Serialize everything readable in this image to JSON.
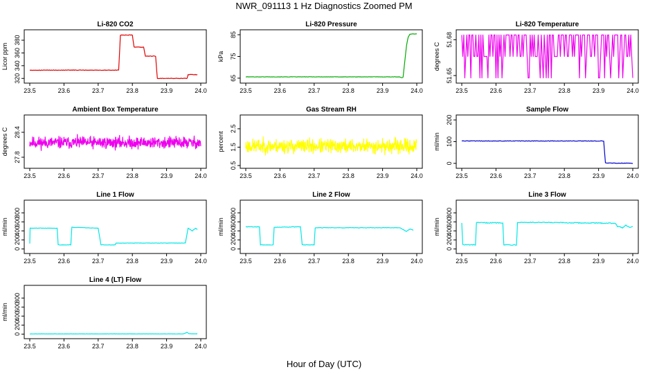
{
  "figure": {
    "title": "NWR_091113  1 Hz Diagnostics Zoomed PM",
    "xlabel": "Hour of Day (UTC)"
  },
  "chart_data": [
    {
      "type": "line",
      "title": "Li-820 CO2",
      "ylabel": "Licor ppm",
      "color": "#e00000",
      "xlim": [
        23.5,
        24.0
      ],
      "xticks": [
        "23.5",
        "23.6",
        "23.7",
        "23.8",
        "23.9",
        "24.0"
      ],
      "ylim": [
        317,
        392
      ],
      "yticks": [
        "320",
        "340",
        "360",
        "380"
      ],
      "noise": 0.4,
      "series": [
        {
          "points": [
            [
              23.5,
              333
            ],
            [
              23.7,
              333
            ],
            [
              23.76,
              333
            ],
            [
              23.765,
              388
            ],
            [
              23.8,
              388
            ],
            [
              23.805,
              369
            ],
            [
              23.833,
              369
            ],
            [
              23.838,
              355
            ],
            [
              23.868,
              355
            ],
            [
              23.873,
              320
            ],
            [
              23.96,
              320
            ],
            [
              23.963,
              326
            ],
            [
              23.99,
              326
            ]
          ]
        }
      ]
    },
    {
      "type": "line",
      "title": "Li-820 Pressure",
      "ylabel": "kPa",
      "color": "#00aa00",
      "xlim": [
        23.5,
        24.0
      ],
      "xticks": [
        "23.5",
        "23.6",
        "23.7",
        "23.8",
        "23.9",
        "24.0"
      ],
      "ylim": [
        64,
        86
      ],
      "yticks": [
        "65",
        "75",
        "85"
      ],
      "noise": 0.08,
      "series": [
        {
          "points": [
            [
              23.5,
              65.6
            ],
            [
              23.95,
              65.6
            ],
            [
              23.955,
              65.2
            ],
            [
              23.96,
              65.4
            ],
            [
              23.97,
              80
            ],
            [
              23.975,
              84
            ],
            [
              23.98,
              85.3
            ],
            [
              24.0,
              85.4
            ]
          ]
        }
      ]
    },
    {
      "type": "line",
      "title": "Li-820 Temperature",
      "ylabel": "degrees C",
      "color": "#ee00ee",
      "xlim": [
        23.5,
        24.0
      ],
      "xticks": [
        "23.5",
        "23.6",
        "23.7",
        "23.8",
        "23.9",
        "24.0"
      ],
      "ylim": [
        51.646,
        51.686
      ],
      "yticks": [
        "51.65",
        "51.68"
      ],
      "pattern": "quantized",
      "levels": [
        51.648,
        51.666,
        51.684
      ],
      "seed": 5,
      "n": 170
    },
    {
      "type": "line",
      "title": "Ambient Box Temperature",
      "ylabel": "degrees C",
      "color": "#ee00ee",
      "xlim": [
        23.5,
        24.0
      ],
      "xticks": [
        "23.5",
        "23.6",
        "23.7",
        "23.8",
        "23.9",
        "24.0"
      ],
      "ylim": [
        27.6,
        28.75
      ],
      "yticks": [
        "27.8",
        "28.4"
      ],
      "pattern": "noise",
      "center": 28.15,
      "amp": 0.13,
      "seed": 11,
      "n": 600
    },
    {
      "type": "line",
      "title": "Gas Stream RH",
      "ylabel": "percent",
      "color": "#ffff00",
      "xlim": [
        23.5,
        24.0
      ],
      "xticks": [
        "23.5",
        "23.6",
        "23.7",
        "23.8",
        "23.9",
        "24.0"
      ],
      "ylim": [
        0.5,
        3.1
      ],
      "yticks": [
        "0.5",
        "1.5",
        "2.5"
      ],
      "pattern": "noise",
      "center": 1.55,
      "amp": 0.35,
      "seed": 23,
      "n": 600
    },
    {
      "type": "line",
      "title": "Sample Flow",
      "ylabel": "ml/min",
      "color": "#0000cc",
      "xlim": [
        23.5,
        24.0
      ],
      "xticks": [
        "23.5",
        "23.6",
        "23.7",
        "23.8",
        "23.9",
        "24.0"
      ],
      "ylim": [
        -10,
        210
      ],
      "yticks": [
        "0",
        "100",
        "200"
      ],
      "noise": 1.2,
      "series": [
        {
          "points": [
            [
              23.5,
              103
            ],
            [
              23.91,
              103
            ],
            [
              23.915,
              102
            ],
            [
              23.92,
              2
            ],
            [
              24.0,
              0
            ]
          ]
        }
      ]
    },
    {
      "type": "line",
      "title": "Line 1 Flow",
      "ylabel": "ml/min",
      "color": "#00e6e6",
      "xlim": [
        23.5,
        24.0
      ],
      "xticks": [
        "23.5",
        "23.6",
        "23.7",
        "23.8",
        "23.9",
        "24.0"
      ],
      "ylim": [
        -40,
        1020
      ],
      "yticks": [
        "0",
        "200",
        "400",
        "600",
        "800"
      ],
      "noise": 4,
      "series": [
        {
          "points": [
            [
              23.5,
              120
            ],
            [
              23.501,
              460
            ],
            [
              23.58,
              460
            ],
            [
              23.583,
              90
            ],
            [
              23.62,
              90
            ],
            [
              23.623,
              480
            ],
            [
              23.7,
              460
            ],
            [
              23.708,
              90
            ],
            [
              23.75,
              90
            ],
            [
              23.752,
              130
            ],
            [
              23.955,
              130
            ],
            [
              23.958,
              260
            ],
            [
              23.963,
              460
            ],
            [
              23.975,
              400
            ],
            [
              23.985,
              460
            ],
            [
              23.99,
              430
            ]
          ]
        }
      ]
    },
    {
      "type": "line",
      "title": "Line 2 Flow",
      "ylabel": "ml/min",
      "color": "#00e6e6",
      "xlim": [
        23.5,
        24.0
      ],
      "xticks": [
        "23.5",
        "23.6",
        "23.7",
        "23.8",
        "23.9",
        "24.0"
      ],
      "ylim": [
        -40,
        1020
      ],
      "yticks": [
        "0",
        "200",
        "400",
        "600",
        "800"
      ],
      "noise": 5,
      "series": [
        {
          "points": [
            [
              23.5,
              490
            ],
            [
              23.54,
              490
            ],
            [
              23.543,
              90
            ],
            [
              23.58,
              90
            ],
            [
              23.583,
              480
            ],
            [
              23.66,
              490
            ],
            [
              23.665,
              90
            ],
            [
              23.7,
              90
            ],
            [
              23.703,
              470
            ],
            [
              23.95,
              470
            ],
            [
              23.96,
              430
            ],
            [
              23.97,
              390
            ],
            [
              23.98,
              440
            ],
            [
              23.99,
              420
            ]
          ]
        }
      ]
    },
    {
      "type": "line",
      "title": "Line 3 Flow",
      "ylabel": "ml/min",
      "color": "#00e6e6",
      "xlim": [
        23.5,
        24.0
      ],
      "xticks": [
        "23.5",
        "23.6",
        "23.7",
        "23.8",
        "23.9",
        "24.0"
      ],
      "ylim": [
        -40,
        1020
      ],
      "yticks": [
        "0",
        "200",
        "400",
        "600",
        "800"
      ],
      "noise": 10,
      "series": [
        {
          "points": [
            [
              23.5,
              580
            ],
            [
              23.503,
              90
            ],
            [
              23.54,
              90
            ],
            [
              23.543,
              580
            ],
            [
              23.62,
              580
            ],
            [
              23.623,
              90
            ],
            [
              23.66,
              90
            ],
            [
              23.663,
              590
            ],
            [
              23.95,
              570
            ],
            [
              23.955,
              500
            ],
            [
              23.97,
              470
            ],
            [
              23.98,
              530
            ],
            [
              23.99,
              480
            ],
            [
              24.0,
              500
            ]
          ]
        }
      ]
    },
    {
      "type": "line",
      "title": "Line 4 (LT) Flow",
      "ylabel": "ml/min",
      "color": "#00e6e6",
      "xlim": [
        23.5,
        24.0
      ],
      "xticks": [
        "23.5",
        "23.6",
        "23.7",
        "23.8",
        "23.9",
        "24.0"
      ],
      "ylim": [
        -40,
        1020
      ],
      "yticks": [
        "0",
        "200",
        "400",
        "600",
        "800"
      ],
      "noise": 2,
      "series": [
        {
          "points": [
            [
              23.5,
              5
            ],
            [
              23.95,
              5
            ],
            [
              23.96,
              40
            ],
            [
              23.965,
              10
            ],
            [
              23.99,
              5
            ]
          ]
        }
      ]
    }
  ]
}
